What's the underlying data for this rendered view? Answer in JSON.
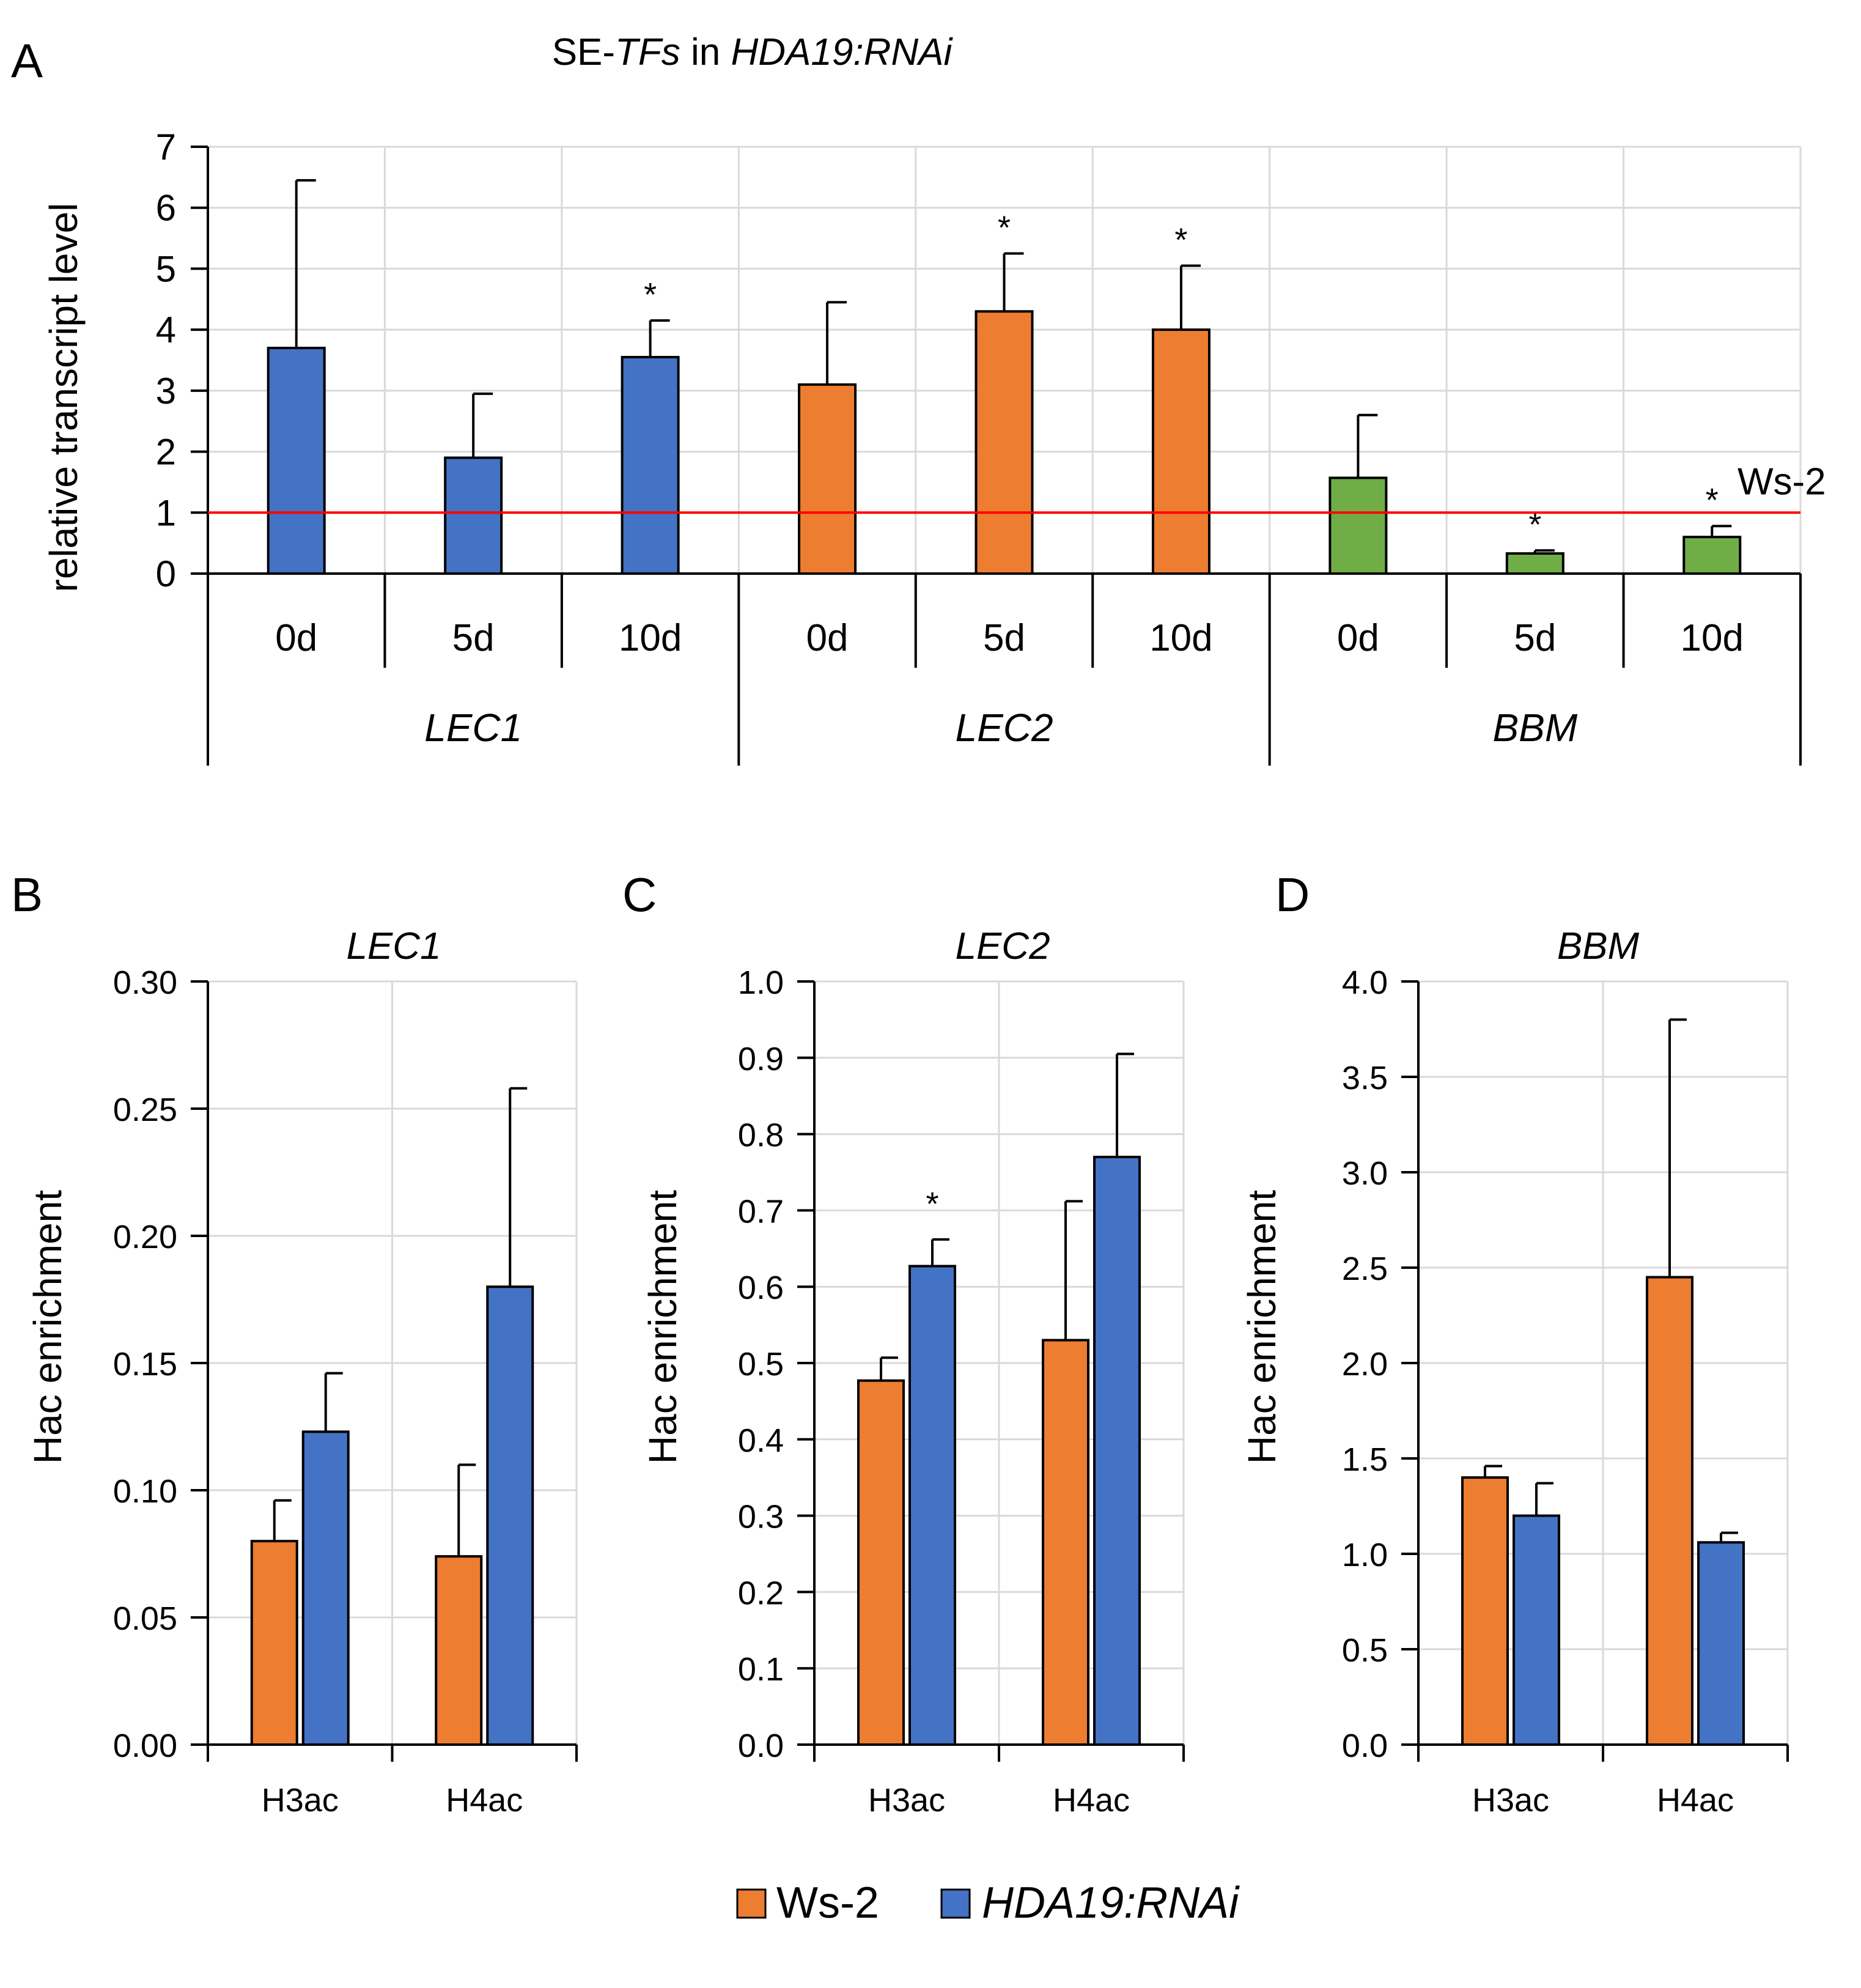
{
  "chart_data": [
    {
      "panel": "A",
      "type": "bar",
      "title_parts": [
        "SE-",
        "TFs",
        " in ",
        "HDA19:RNAi"
      ],
      "ylabel": "relative transcript level",
      "ylim": [
        0,
        7
      ],
      "yticks": [
        "0",
        "1",
        "2",
        "3",
        "4",
        "5",
        "6",
        "7"
      ],
      "categories": [
        "0d",
        "5d",
        "10d",
        "0d",
        "5d",
        "10d",
        "0d",
        "5d",
        "10d"
      ],
      "groups": [
        "LEC1",
        "LEC2",
        "BBM"
      ],
      "values": [
        3.7,
        1.9,
        3.55,
        3.1,
        4.3,
        4.0,
        1.57,
        0.33,
        0.6
      ],
      "errors": [
        2.75,
        1.05,
        0.6,
        1.35,
        0.95,
        1.05,
        1.03,
        0.05,
        0.18
      ],
      "significance": [
        "",
        "",
        "*",
        "",
        "*",
        "*",
        "",
        "*",
        "*"
      ],
      "colors": [
        "#4472C4",
        "#4472C4",
        "#4472C4",
        "#ED7D31",
        "#ED7D31",
        "#ED7D31",
        "#70AD47",
        "#70AD47",
        "#70AD47"
      ],
      "reference_line": {
        "value": 1,
        "label": "Ws-2",
        "color": "#FF0000"
      }
    },
    {
      "panel": "B",
      "type": "bar",
      "title": "LEC1",
      "ylabel": "Hac enrichment",
      "ylim": [
        0,
        0.3
      ],
      "yticks": [
        "0.00",
        "0.05",
        "0.10",
        "0.15",
        "0.20",
        "0.25",
        "0.30"
      ],
      "categories": [
        "H3ac",
        "H4ac"
      ],
      "series": [
        {
          "name": "Ws-2",
          "values": [
            0.08,
            0.074
          ],
          "errors": [
            0.016,
            0.036
          ]
        },
        {
          "name": "HDA19:RNAi",
          "values": [
            0.123,
            0.18
          ],
          "errors": [
            0.023,
            0.078
          ]
        }
      ],
      "significance": []
    },
    {
      "panel": "C",
      "type": "bar",
      "title": "LEC2",
      "ylabel": "Hac enrichment",
      "ylim": [
        0,
        1.0
      ],
      "yticks": [
        "0.0",
        "0.1",
        "0.2",
        "0.3",
        "0.4",
        "0.5",
        "0.6",
        "0.7",
        "0.8",
        "0.9",
        "1.0"
      ],
      "categories": [
        "H3ac",
        "H4ac"
      ],
      "series": [
        {
          "name": "Ws-2",
          "values": [
            0.477,
            0.53
          ],
          "errors": [
            0.03,
            0.182
          ]
        },
        {
          "name": "HDA19:RNAi",
          "values": [
            0.627,
            0.77
          ],
          "errors": [
            0.035,
            0.135
          ]
        }
      ],
      "significance": [
        {
          "series": 1,
          "category": 0,
          "mark": "*"
        }
      ]
    },
    {
      "panel": "D",
      "type": "bar",
      "title": "BBM",
      "ylabel": "Hac enrichment",
      "ylim": [
        0,
        4.0
      ],
      "yticks": [
        "0.0",
        "0.5",
        "1.0",
        "1.5",
        "2.0",
        "2.5",
        "3.0",
        "3.5",
        "4.0"
      ],
      "categories": [
        "H3ac",
        "H4ac"
      ],
      "series": [
        {
          "name": "Ws-2",
          "values": [
            1.4,
            2.45
          ],
          "errors": [
            0.06,
            1.35
          ]
        },
        {
          "name": "HDA19:RNAi",
          "values": [
            1.2,
            1.06
          ],
          "errors": [
            0.17,
            0.05
          ]
        }
      ],
      "significance": []
    }
  ],
  "legend": [
    {
      "label": "Ws-2",
      "color": "#ED7D31"
    },
    {
      "label": "HDA19:RNAi",
      "color": "#4472C4"
    }
  ],
  "colors": {
    "ws2": "#ED7D31",
    "rnai": "#4472C4",
    "bbm": "#70AD47",
    "ref": "#FF0000",
    "grid": "#D9D9D9"
  }
}
